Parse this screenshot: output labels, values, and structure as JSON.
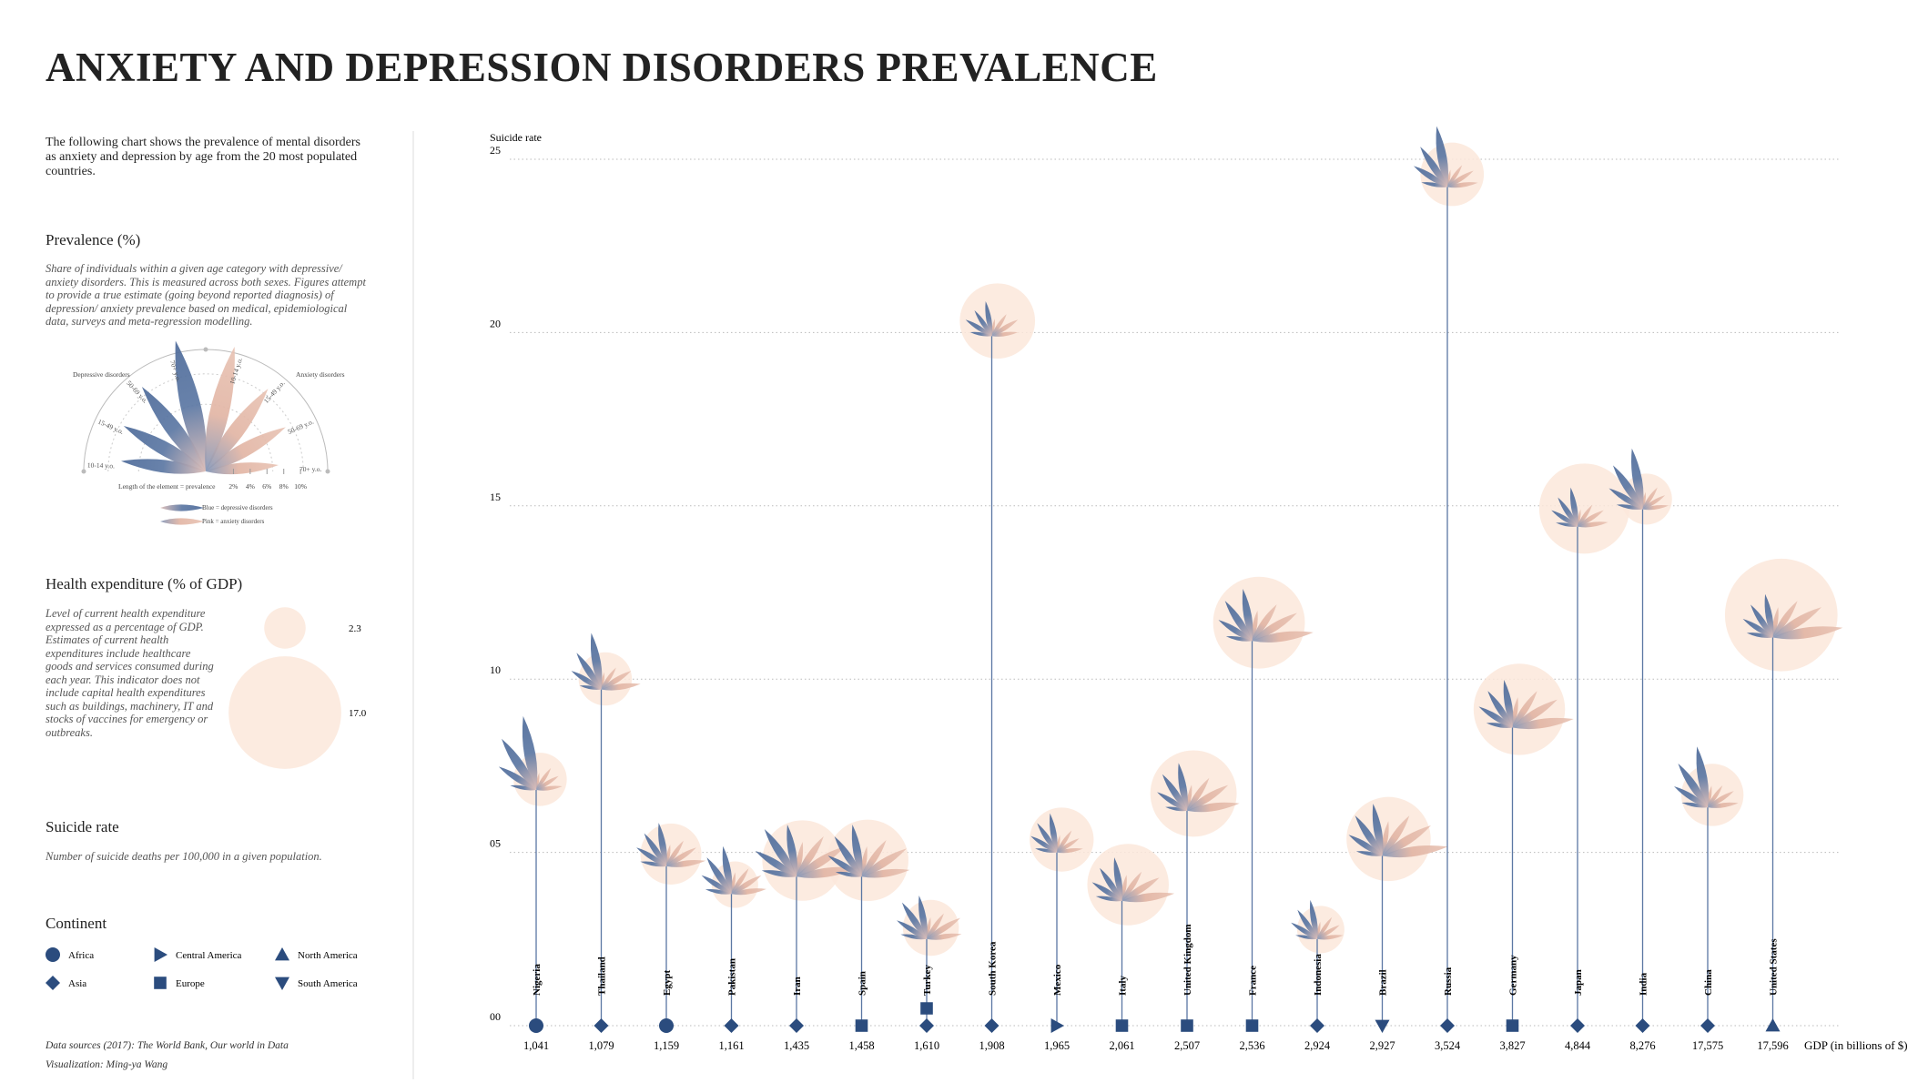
{
  "chart_data": {
    "type": "flower",
    "title": "ANXIETY AND DEPRESSION DISORDERS PREVALENCE",
    "intro": "The following chart shows the prevalence of mental disorders as anxiety and depression by age from the 20 most populated countries.",
    "prevalence": {
      "heading": "Prevalence (%)",
      "text": "Share of individuals within a given age category with depressive/ anxiety disorders. This is measured across both sexes. Figures attempt to provide a true estimate (going beyond reported diagnosis) of depression/ anxiety prevalence based on medical, epidemiological data, surveys and meta-regression modelling.",
      "depressive_label": "Depressive disorders",
      "anxiety_label": "Anxiety disorders",
      "age_groups": [
        "10-14 y.o.",
        "15-49 y.o.",
        "50-69 y.o.",
        "70+ y.o."
      ],
      "length_note": "Length of the element = prevalence",
      "ticks": [
        {
          "value": 2,
          "label": "2%"
        },
        {
          "value": 4,
          "label": "4%"
        },
        {
          "value": 6,
          "label": "6%"
        },
        {
          "value": 8,
          "label": "8%"
        },
        {
          "value": 10,
          "label": "10%"
        }
      ],
      "blue_note": "Blue = depressive disorders",
      "pink_note": "Pink = anxiety disorders"
    },
    "health": {
      "heading": "Health expenditure (% of GDP)",
      "text": "Level of current health expenditure expressed as a percentage of GDP. Estimates of current health expenditures include healthcare goods and services consumed during each year. This indicator does not include capital health expenditures such as buildings, machinery, IT and stocks of vaccines for emergency or outbreaks.",
      "legend_sizes": [
        {
          "value": 2.3,
          "label": "2.3"
        },
        {
          "value": 17.0,
          "label": "17.0"
        }
      ]
    },
    "suicide": {
      "heading": "Suicide rate",
      "text": "Number of suicide deaths per 100,000 in a given population."
    },
    "continent": {
      "heading": "Continent",
      "items": [
        {
          "name": "Africa",
          "symbol": "circle"
        },
        {
          "name": "Central America",
          "symbol": "triangle-right"
        },
        {
          "name": "North America",
          "symbol": "triangle-up"
        },
        {
          "name": "Asia",
          "symbol": "diamond"
        },
        {
          "name": "Europe",
          "symbol": "square"
        },
        {
          "name": "South America",
          "symbol": "triangle-down"
        }
      ]
    },
    "sources": "Data sources (2017): The World Bank, Our world in Data",
    "credit": "Visualization: Ming-ya Wang",
    "y_label": "Suicide rate",
    "x_label": "GDP (in billions of $)",
    "ylim": [
      0,
      25
    ],
    "yticks": [
      {
        "value": 0,
        "label": "00"
      },
      {
        "value": 5,
        "label": "05"
      },
      10,
      15,
      20,
      25
    ],
    "categories": [
      "Nigeria",
      "Thailand",
      "Egypt",
      "Pakistan",
      "Iran",
      "Spain",
      "Turkey",
      "South Korea",
      "Mexico",
      "Italy",
      "United Kingdom",
      "France",
      "Indonesia",
      "Brazil",
      "Russia",
      "Germany",
      "Japan",
      "India",
      "China",
      "United States"
    ],
    "gdp": [
      "1,041",
      "1,079",
      "1,159",
      "1,161",
      "1,435",
      "1,458",
      "1,610",
      "1,908",
      "1,965",
      "2,061",
      "2,507",
      "2,536",
      "2,924",
      "2,927",
      "3,524",
      "3,827",
      "4,844",
      "8,276",
      "17,575",
      "17,596"
    ],
    "continents": [
      [
        "Africa"
      ],
      [
        "Asia"
      ],
      [
        "Africa"
      ],
      [
        "Asia"
      ],
      [
        "Asia"
      ],
      [
        "Europe"
      ],
      [
        "Asia",
        "Europe"
      ],
      [
        "Asia"
      ],
      [
        "Central America"
      ],
      [
        "Europe"
      ],
      [
        "Europe"
      ],
      [
        "Europe"
      ],
      [
        "Asia"
      ],
      [
        "South America"
      ],
      [
        "Asia"
      ],
      [
        "Europe"
      ],
      [
        "Asia"
      ],
      [
        "Asia"
      ],
      [
        "Asia"
      ],
      [
        "North America"
      ]
    ],
    "suicide_rate": [
      6.8,
      9.7,
      4.6,
      3.8,
      4.3,
      4.3,
      2.5,
      19.9,
      5.0,
      3.6,
      6.2,
      11.1,
      2.5,
      4.9,
      24.2,
      8.6,
      14.4,
      14.9,
      6.3,
      11.2
    ],
    "health_expenditure": [
      3.8,
      3.8,
      5.0,
      2.9,
      8.7,
      8.9,
      4.2,
      7.6,
      5.5,
      8.9,
      10.0,
      11.3,
      3.0,
      9.5,
      5.4,
      11.2,
      10.9,
      3.5,
      5.2,
      17.0
    ],
    "depressive": [
      [
        3,
        5,
        7,
        8.5
      ],
      [
        2.5,
        4,
        5,
        6.5
      ],
      [
        3,
        4,
        4.5,
        5
      ],
      [
        3,
        4,
        5,
        5.5
      ],
      [
        4,
        5.5,
        6.5,
        6
      ],
      [
        3,
        4.5,
        5.5,
        6
      ],
      [
        3,
        4,
        5,
        5
      ],
      [
        2.5,
        3.5,
        3.5,
        4
      ],
      [
        2.5,
        3.5,
        4,
        4.5
      ],
      [
        3,
        4,
        4.5,
        5
      ],
      [
        2.5,
        4,
        5,
        5.5
      ],
      [
        3,
        4.5,
        5.5,
        6
      ],
      [
        2.5,
        3.5,
        4,
        4.5
      ],
      [
        3,
        4.5,
        5.5,
        6
      ],
      [
        3,
        4.5,
        5.5,
        7
      ],
      [
        3,
        4.5,
        5,
        5.5
      ],
      [
        2.5,
        3.5,
        4,
        4.5
      ],
      [
        3,
        4.5,
        6,
        7
      ],
      [
        3,
        4.5,
        6,
        7
      ],
      [
        3,
        4,
        4.5,
        5
      ]
    ],
    "anxiety": [
      [
        2,
        3,
        3,
        3
      ],
      [
        2,
        3,
        4,
        4.5
      ],
      [
        2.5,
        3.5,
        4,
        4.5
      ],
      [
        2.5,
        3.5,
        4,
        4
      ],
      [
        4,
        5.5,
        6.5,
        7
      ],
      [
        3.5,
        5,
        6,
        5.5
      ],
      [
        2.5,
        3.5,
        4.5,
        4
      ],
      [
        2,
        3,
        3.5,
        3
      ],
      [
        2,
        3,
        3,
        3
      ],
      [
        3,
        4,
        5,
        6
      ],
      [
        3,
        4.5,
        5.5,
        6
      ],
      [
        3.5,
        5,
        6,
        7
      ],
      [
        2,
        3,
        3,
        3
      ],
      [
        4,
        5.5,
        6.5,
        7.5
      ],
      [
        2,
        3,
        3.5,
        3.5
      ],
      [
        3.5,
        5,
        6,
        7
      ],
      [
        2,
        3,
        3.5,
        3.5
      ],
      [
        2,
        3,
        3,
        3
      ],
      [
        2.5,
        3,
        3.5,
        3.5
      ],
      [
        3.5,
        5,
        6.5,
        8
      ]
    ],
    "colors": {
      "depressive": "#5b77a3",
      "anxiety": "#e2b5a4",
      "expenditure": "#fbe8da",
      "marker": "#2b4c7e",
      "stem": "#5b77a3"
    }
  }
}
